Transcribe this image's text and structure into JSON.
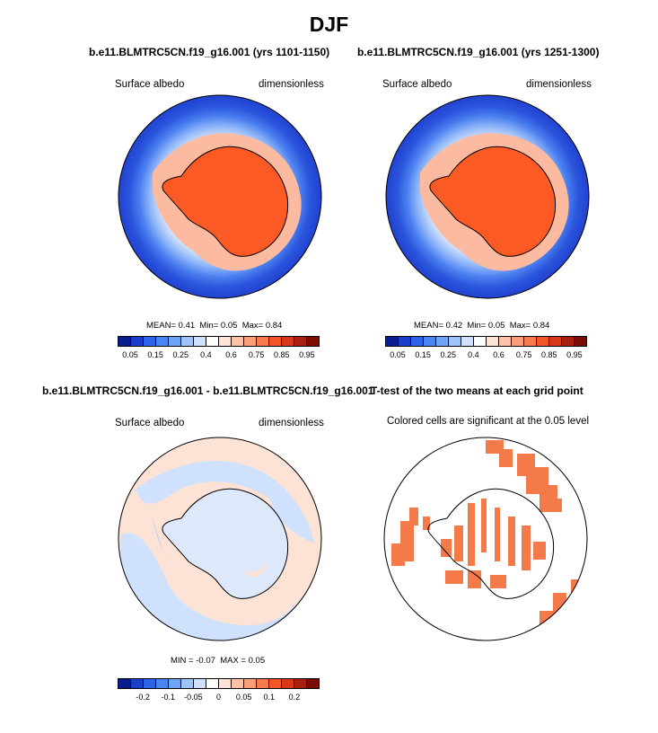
{
  "figure_title": "DJF",
  "panels": {
    "p1": {
      "title": "b.e11.BLMTRC5CN.f19_g16.001 (yrs 1101-1150)",
      "left_label": "Surface albedo",
      "right_label": "dimensionless",
      "stats": {
        "mean_label": "MEAN=",
        "mean": "0.41",
        "min_label": "Min=",
        "min": "0.05",
        "max_label": "Max=",
        "max": "0.84"
      }
    },
    "p2": {
      "title": "b.e11.BLMTRC5CN.f19_g16.001 (yrs 1251-1300)",
      "left_label": "Surface albedo",
      "right_label": "dimensionless",
      "stats": {
        "mean_label": "MEAN=",
        "mean": "0.42",
        "min_label": "Min=",
        "min": "0.05",
        "max_label": "Max=",
        "max": "0.84"
      }
    },
    "p3": {
      "title": "b.e11.BLMTRC5CN.f19_g16.001 - b.e11.BLMTRC5CN.f19_g16.001",
      "left_label": "Surface albedo",
      "right_label": "dimensionless",
      "stats": {
        "min_label": "MIN =",
        "min": "-0.07",
        "max_label": "MAX =",
        "max": "0.05"
      }
    },
    "p4": {
      "title": "T-test of the two means at each grid point",
      "subtitle": "Colored cells are significant at the 0.05 level"
    }
  },
  "colorbars": {
    "abs": {
      "colors": [
        "#0a1d8f",
        "#1c3fc8",
        "#2e62e8",
        "#4a84f0",
        "#6fa4f6",
        "#9fc4fa",
        "#cfe1fc",
        "#ffffff",
        "#fde3d6",
        "#fcc3a8",
        "#fb9f78",
        "#f97a4c",
        "#f25526",
        "#d6381a",
        "#a8200f",
        "#7a0c05"
      ],
      "ticks": [
        "0.05",
        "0.15",
        "0.25",
        "0.4",
        "0.6",
        "0.75",
        "0.85",
        "0.95"
      ]
    },
    "diff": {
      "colors": [
        "#0a1d8f",
        "#1c3fc8",
        "#2e62e8",
        "#4a84f0",
        "#6fa4f6",
        "#9fc4fa",
        "#cfe1fc",
        "#ffffff",
        "#fde3d6",
        "#fcc3a8",
        "#fb9f78",
        "#f97a4c",
        "#f25526",
        "#d6381a",
        "#a8200f",
        "#7a0c05"
      ],
      "ticks": [
        "-0.2",
        "-0.1",
        "-0.05",
        "0",
        "0.05",
        "0.1",
        "0.2"
      ]
    }
  },
  "chart_data": [
    {
      "type": "heatmap",
      "title": "b.e11.BLMTRC5CN.f19_g16.001 (yrs 1101-1150)",
      "variable": "Surface albedo",
      "units": "dimensionless",
      "projection": "south-polar stereographic",
      "mean": 0.41,
      "min": 0.05,
      "max": 0.84,
      "levels": [
        0.05,
        0.1,
        0.15,
        0.2,
        0.25,
        0.3,
        0.4,
        0.5,
        0.6,
        0.7,
        0.75,
        0.8,
        0.85,
        0.9,
        0.95
      ]
    },
    {
      "type": "heatmap",
      "title": "b.e11.BLMTRC5CN.f19_g16.001 (yrs 1251-1300)",
      "variable": "Surface albedo",
      "units": "dimensionless",
      "projection": "south-polar stereographic",
      "mean": 0.42,
      "min": 0.05,
      "max": 0.84,
      "levels": [
        0.05,
        0.1,
        0.15,
        0.2,
        0.25,
        0.3,
        0.4,
        0.5,
        0.6,
        0.7,
        0.75,
        0.8,
        0.85,
        0.9,
        0.95
      ]
    },
    {
      "type": "heatmap",
      "title": "b.e11.BLMTRC5CN.f19_g16.001 - b.e11.BLMTRC5CN.f19_g16.001",
      "variable": "Surface albedo",
      "units": "dimensionless",
      "projection": "south-polar stereographic",
      "min": -0.07,
      "max": 0.05,
      "levels": [
        -0.2,
        -0.15,
        -0.1,
        -0.07,
        -0.05,
        -0.03,
        -0.01,
        0,
        0.01,
        0.03,
        0.05,
        0.07,
        0.1,
        0.15,
        0.2
      ]
    },
    {
      "type": "heatmap",
      "title": "T-test of the two means at each grid point",
      "subtitle": "Colored cells are significant at the 0.05 level",
      "projection": "south-polar stereographic",
      "significance_level": 0.05,
      "cell_color": "#f47a4a"
    }
  ],
  "palette": {
    "ice": "#fb5a24",
    "ice_light": "#fb7d52",
    "ice_pale": "#fcbba0",
    "ocean_deep": "#2040d0",
    "coast": "#000000",
    "sig": "#f47a4a",
    "diff_neg": "#cfe1fc",
    "diff_pos": "#fde3d6"
  }
}
